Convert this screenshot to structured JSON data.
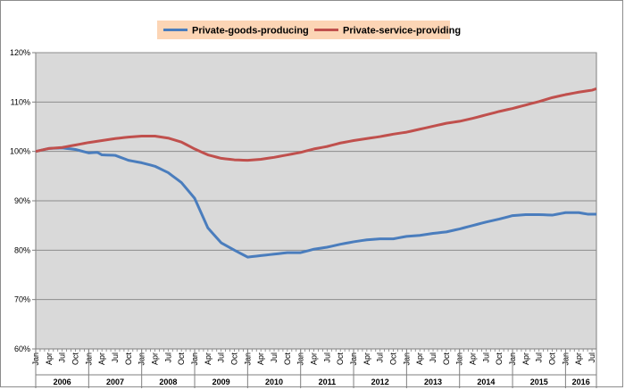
{
  "chart_data": {
    "type": "line",
    "title": "",
    "xlabel": "",
    "ylabel": "",
    "ylim": [
      0.6,
      1.2
    ],
    "y_ticks": [
      "60%",
      "70%",
      "80%",
      "90%",
      "100%",
      "110%",
      "120%"
    ],
    "y_tick_values": [
      0.6,
      0.7,
      0.8,
      0.9,
      1.0,
      1.1,
      1.2
    ],
    "grid": "horizontal major gridlines",
    "legend_placement": "top-center",
    "plot_background": "#d9d9d9",
    "legend_background": "#fcd5b5",
    "month_tick_labels": [
      "Jan",
      "Apr",
      "Jul",
      "Oct"
    ],
    "years": [
      "2006",
      "2007",
      "2008",
      "2009",
      "2010",
      "2011",
      "2012",
      "2013",
      "2014",
      "2015",
      "2016"
    ],
    "x_start": "2006-01",
    "x_end": "2016-08",
    "series": [
      {
        "name": "Private-goods-producing",
        "color": "#4a7dbd",
        "anchors": [
          [
            "2006-01",
            1.0
          ],
          [
            "2006-04",
            1.006
          ],
          [
            "2006-07",
            1.007
          ],
          [
            "2006-10",
            1.004
          ],
          [
            "2007-01",
            0.997
          ],
          [
            "2007-03",
            0.998
          ],
          [
            "2007-04",
            0.993
          ],
          [
            "2007-07",
            0.992
          ],
          [
            "2007-10",
            0.982
          ],
          [
            "2008-01",
            0.977
          ],
          [
            "2008-04",
            0.97
          ],
          [
            "2008-07",
            0.957
          ],
          [
            "2008-10",
            0.937
          ],
          [
            "2009-01",
            0.905
          ],
          [
            "2009-04",
            0.845
          ],
          [
            "2009-07",
            0.815
          ],
          [
            "2009-10",
            0.8
          ],
          [
            "2010-01",
            0.786
          ],
          [
            "2010-04",
            0.789
          ],
          [
            "2010-07",
            0.792
          ],
          [
            "2010-10",
            0.795
          ],
          [
            "2011-01",
            0.795
          ],
          [
            "2011-04",
            0.802
          ],
          [
            "2011-07",
            0.806
          ],
          [
            "2011-10",
            0.812
          ],
          [
            "2012-01",
            0.817
          ],
          [
            "2012-04",
            0.821
          ],
          [
            "2012-07",
            0.823
          ],
          [
            "2012-10",
            0.823
          ],
          [
            "2013-01",
            0.828
          ],
          [
            "2013-04",
            0.83
          ],
          [
            "2013-07",
            0.834
          ],
          [
            "2013-10",
            0.837
          ],
          [
            "2014-01",
            0.843
          ],
          [
            "2014-04",
            0.85
          ],
          [
            "2014-07",
            0.857
          ],
          [
            "2014-10",
            0.863
          ],
          [
            "2015-01",
            0.87
          ],
          [
            "2015-04",
            0.872
          ],
          [
            "2015-07",
            0.872
          ],
          [
            "2015-10",
            0.871
          ],
          [
            "2016-01",
            0.876
          ],
          [
            "2016-04",
            0.876
          ],
          [
            "2016-06",
            0.873
          ],
          [
            "2016-08",
            0.873
          ]
        ]
      },
      {
        "name": "Private-service-providing",
        "color": "#c0504d",
        "anchors": [
          [
            "2006-01",
            1.0
          ],
          [
            "2006-04",
            1.006
          ],
          [
            "2006-07",
            1.008
          ],
          [
            "2006-10",
            1.013
          ],
          [
            "2007-01",
            1.018
          ],
          [
            "2007-04",
            1.022
          ],
          [
            "2007-07",
            1.026
          ],
          [
            "2007-10",
            1.029
          ],
          [
            "2008-01",
            1.031
          ],
          [
            "2008-04",
            1.031
          ],
          [
            "2008-07",
            1.027
          ],
          [
            "2008-10",
            1.019
          ],
          [
            "2009-01",
            1.005
          ],
          [
            "2009-04",
            0.993
          ],
          [
            "2009-07",
            0.986
          ],
          [
            "2009-10",
            0.983
          ],
          [
            "2010-01",
            0.982
          ],
          [
            "2010-04",
            0.984
          ],
          [
            "2010-07",
            0.988
          ],
          [
            "2010-10",
            0.993
          ],
          [
            "2011-01",
            0.998
          ],
          [
            "2011-04",
            1.005
          ],
          [
            "2011-07",
            1.01
          ],
          [
            "2011-10",
            1.017
          ],
          [
            "2012-01",
            1.022
          ],
          [
            "2012-04",
            1.026
          ],
          [
            "2012-07",
            1.03
          ],
          [
            "2012-10",
            1.035
          ],
          [
            "2013-01",
            1.039
          ],
          [
            "2013-04",
            1.045
          ],
          [
            "2013-07",
            1.051
          ],
          [
            "2013-10",
            1.057
          ],
          [
            "2014-01",
            1.061
          ],
          [
            "2014-04",
            1.067
          ],
          [
            "2014-07",
            1.074
          ],
          [
            "2014-10",
            1.081
          ],
          [
            "2015-01",
            1.087
          ],
          [
            "2015-04",
            1.094
          ],
          [
            "2015-07",
            1.101
          ],
          [
            "2015-10",
            1.109
          ],
          [
            "2016-01",
            1.115
          ],
          [
            "2016-04",
            1.12
          ],
          [
            "2016-07",
            1.124
          ],
          [
            "2016-08",
            1.127
          ]
        ]
      }
    ]
  }
}
